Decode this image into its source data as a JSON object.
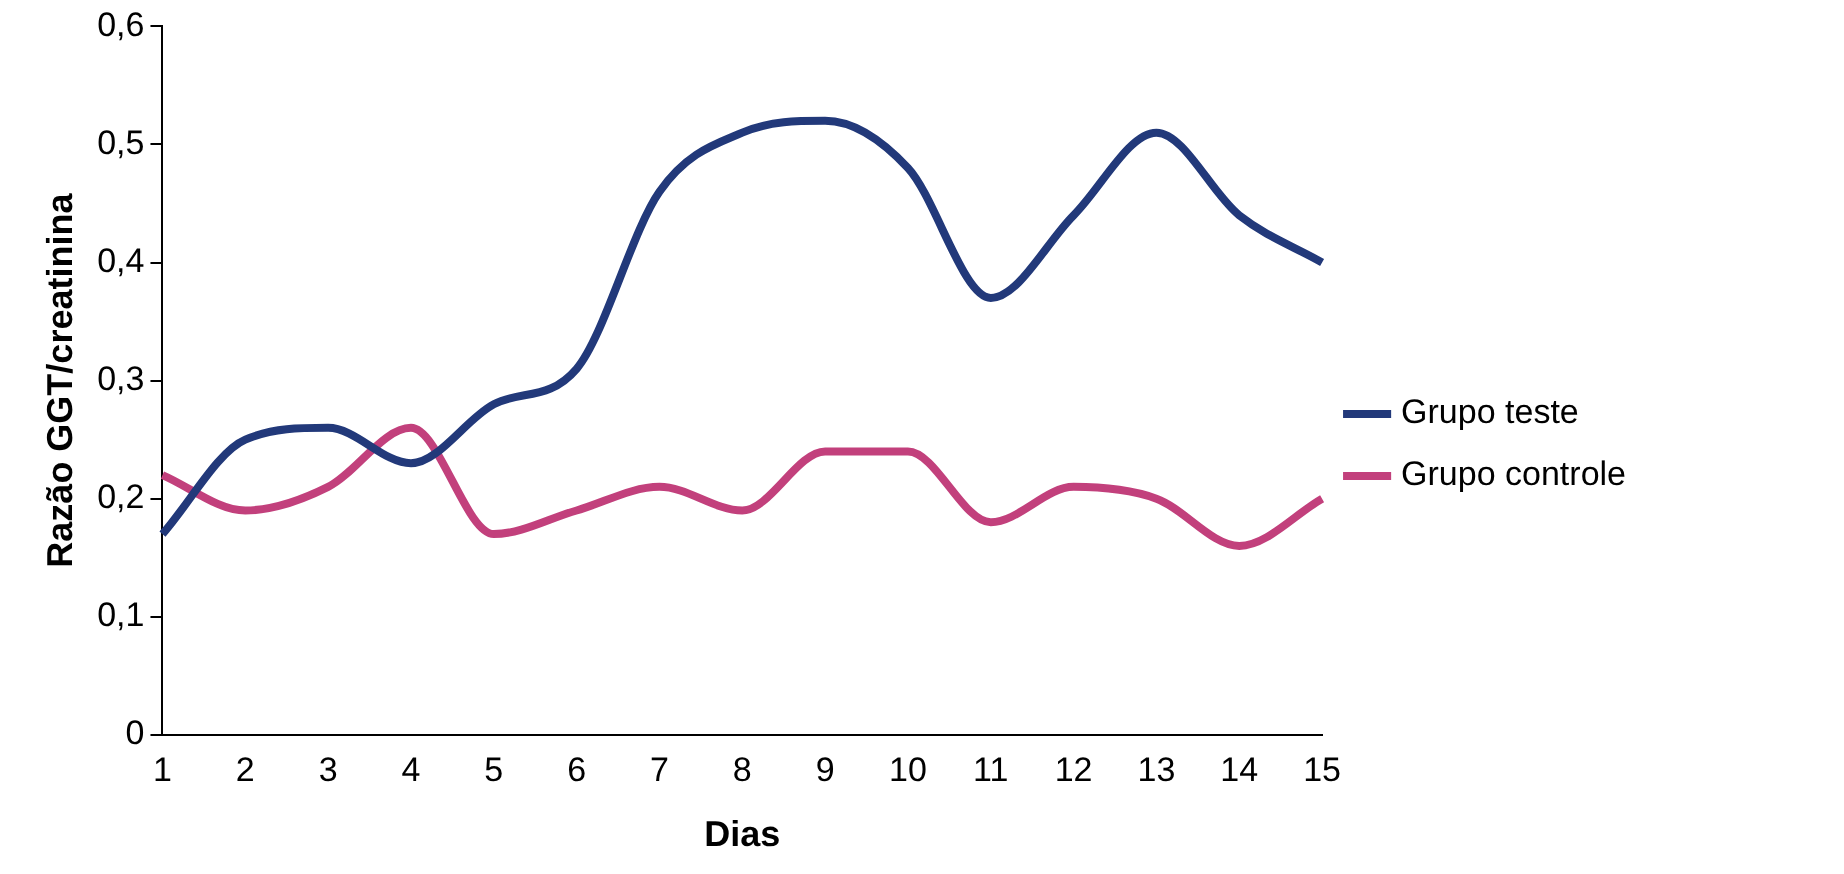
{
  "chart_data": {
    "type": "line",
    "xlabel": "Dias",
    "ylabel": "Razão GGT/creatinina",
    "categories": [
      "1",
      "2",
      "3",
      "4",
      "5",
      "6",
      "7",
      "8",
      "9",
      "10",
      "11",
      "12",
      "13",
      "14",
      "15"
    ],
    "series": [
      {
        "name": "Grupo teste",
        "color": "#22397a",
        "values": [
          0.17,
          0.25,
          0.26,
          0.23,
          0.28,
          0.31,
          0.46,
          0.51,
          0.52,
          0.48,
          0.37,
          0.44,
          0.51,
          0.44,
          0.4
        ]
      },
      {
        "name": "Grupo controle",
        "color": "#c2407c",
        "values": [
          0.22,
          0.19,
          0.21,
          0.26,
          0.17,
          0.19,
          0.21,
          0.19,
          0.24,
          0.24,
          0.18,
          0.21,
          0.2,
          0.16,
          0.2
        ]
      }
    ],
    "ylim": [
      0,
      0.6
    ],
    "yticks": [
      0,
      {
        "value": 0.1,
        "label": "0,1"
      },
      {
        "value": 0.2,
        "label": "0,2"
      },
      {
        "value": 0.3,
        "label": "0,3"
      },
      {
        "value": 0.4,
        "label": "0,4"
      },
      {
        "value": 0.5,
        "label": "0,5"
      },
      {
        "value": 0.6,
        "label": "0,6"
      }
    ],
    "grid": false,
    "legend": "right",
    "marker": "none",
    "line_style": "solid"
  }
}
